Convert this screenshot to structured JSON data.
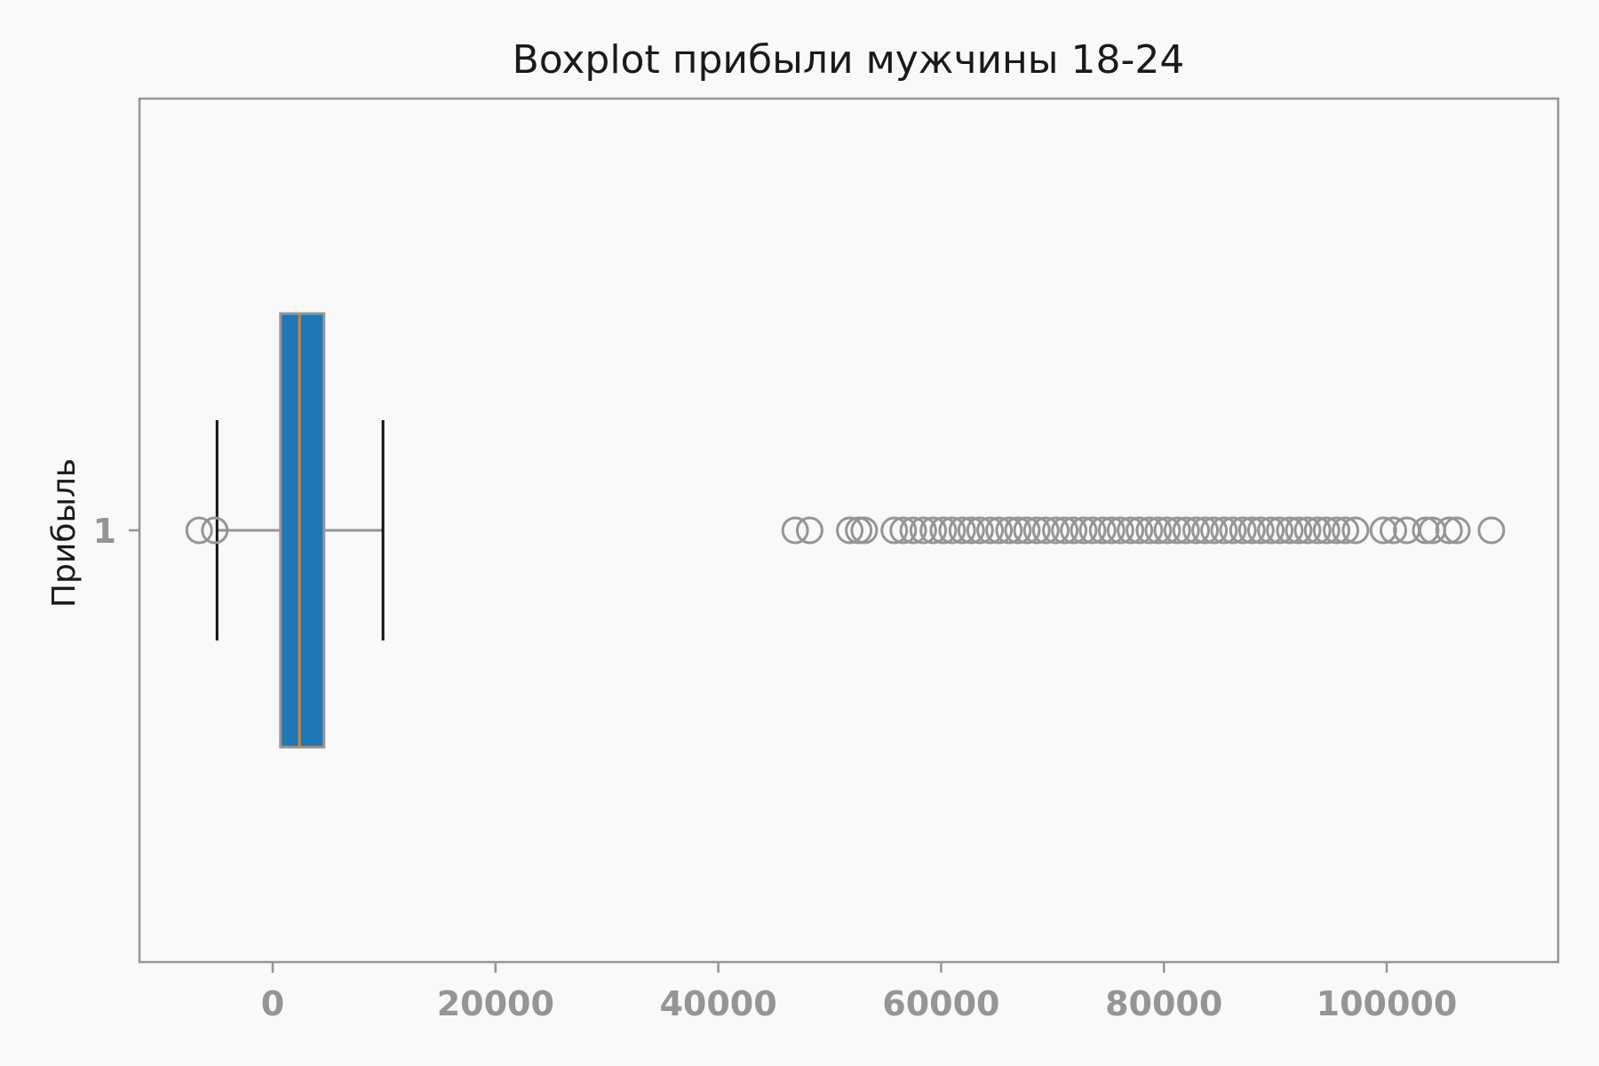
{
  "chart_data": {
    "type": "boxplot",
    "orientation": "horizontal",
    "title": "Boxplot прибыли мужчины 18-24",
    "xlabel": "",
    "ylabel": "Прибыль",
    "xlim": [
      -12000,
      115000
    ],
    "xticks": [
      0,
      20000,
      40000,
      60000,
      80000,
      100000
    ],
    "xtick_labels": [
      "0",
      "20000",
      "40000",
      "60000",
      "80000",
      "100000"
    ],
    "categories": [
      "1"
    ],
    "box": {
      "whisker_low": -5000,
      "q1": 700,
      "median": 2400,
      "q3": 4600,
      "whisker_high": 9900
    },
    "outliers": [
      -6600,
      -5200,
      46900,
      48200,
      51800,
      52600,
      53100,
      55800,
      56600,
      57500,
      58400,
      59300,
      60200,
      61000,
      61900,
      62700,
      63500,
      64400,
      65200,
      66100,
      66900,
      67700,
      68600,
      69400,
      70300,
      71100,
      71900,
      72800,
      73600,
      74500,
      75300,
      76100,
      77000,
      77800,
      78700,
      79500,
      80300,
      81200,
      82000,
      82900,
      83700,
      84500,
      85400,
      86200,
      87100,
      87900,
      88700,
      89600,
      90400,
      91300,
      92100,
      92900,
      93800,
      94600,
      95500,
      96300,
      97200,
      99700,
      100600,
      101800,
      103500,
      104100,
      105600,
      106300,
      109400
    ],
    "colors": {
      "box_fill": "#1f77b4",
      "box_edge": "#959595",
      "median": "#d9822b",
      "whisker_cap": "#111111",
      "outlier": "#959595",
      "axes": "#959595",
      "background": "#f9f9f9"
    }
  }
}
